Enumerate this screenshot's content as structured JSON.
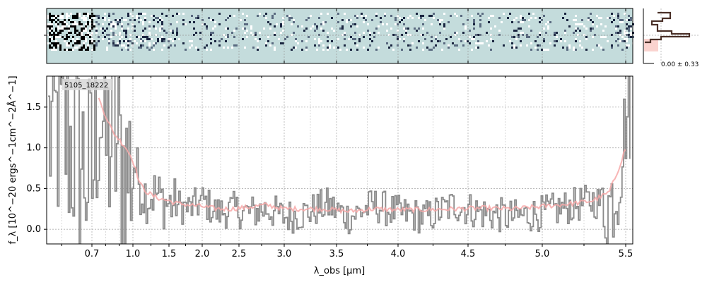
{
  "chart_data": {
    "type": "line",
    "object_id": "5105_18222",
    "ylabel": "f_λ [10^−20 ergs^−1cm^−2Å^−1]",
    "xlabel": "λ_obs [μm]",
    "xticks": [
      0.7,
      1.0,
      1.5,
      2.0,
      2.5,
      3.0,
      3.5,
      4.0,
      4.5,
      5.0,
      5.5
    ],
    "xtick_labels": [
      "0.7",
      "1.0",
      "1.5",
      "2.0",
      "2.5",
      "3.0",
      "3.5",
      "4.0",
      "4.5",
      "5.0",
      "5.5"
    ],
    "yticks": [
      0.0,
      0.5,
      1.0,
      1.5
    ],
    "ytick_labels": [
      "0.0",
      "0.5",
      "1.0",
      "1.5"
    ],
    "xlim": [
      0.55,
      5.55
    ],
    "ylim": [
      -0.18,
      1.88
    ],
    "x_scale": "nonlinear (wavelength axis, sqrt-like)",
    "grid": true,
    "colors": {
      "data": "#8a8a8a",
      "model": "#f7a8a8",
      "spectrum_2d_bg": "#c4dcdc",
      "profile_line": "#4a3028",
      "profile_fill": "#fad3cf"
    },
    "series": [
      {
        "role": "spectrum",
        "x": [
          0.6,
          0.7,
          0.75,
          0.8,
          0.85,
          0.9,
          0.95,
          1.0,
          1.05,
          1.1,
          1.2,
          1.3,
          1.4,
          1.5,
          1.6,
          1.8,
          2.0,
          2.2,
          2.4,
          2.6,
          2.8,
          3.0,
          3.2,
          3.4,
          3.6,
          3.8,
          4.0,
          4.2,
          4.4,
          4.6,
          4.8,
          5.0,
          5.1,
          5.2,
          5.3,
          5.4,
          5.45,
          5.5
        ],
        "y": [
          1.2,
          0.6,
          1.7,
          1.0,
          1.1,
          0.85,
          0.7,
          0.85,
          0.7,
          0.5,
          0.4,
          0.45,
          0.35,
          0.3,
          0.3,
          0.25,
          0.35,
          0.2,
          0.25,
          0.2,
          0.25,
          0.15,
          0.2,
          0.3,
          0.15,
          0.3,
          0.2,
          0.15,
          0.3,
          0.2,
          0.15,
          0.2,
          0.25,
          0.3,
          0.35,
          0.3,
          0.55,
          1.4
        ]
      },
      {
        "role": "model",
        "x": [
          0.75,
          0.8,
          0.85,
          0.9,
          0.95,
          1.0,
          1.05,
          1.1,
          1.2,
          1.3,
          1.4,
          1.5,
          1.6,
          1.8,
          2.0,
          2.2,
          2.4,
          2.6,
          2.8,
          3.0,
          3.2,
          3.4,
          3.6,
          3.8,
          4.0,
          4.2,
          4.4,
          4.6,
          4.8,
          5.0,
          5.1,
          5.2,
          5.3,
          5.4,
          5.45,
          5.5
        ],
        "y": [
          1.6,
          1.4,
          1.2,
          1.1,
          1.0,
          0.85,
          0.7,
          0.55,
          0.45,
          0.4,
          0.37,
          0.35,
          0.32,
          0.3,
          0.28,
          0.25,
          0.25,
          0.27,
          0.3,
          0.25,
          0.25,
          0.25,
          0.22,
          0.25,
          0.24,
          0.24,
          0.25,
          0.26,
          0.25,
          0.28,
          0.3,
          0.32,
          0.35,
          0.45,
          0.7,
          1.0
        ]
      }
    ],
    "profile_label": "0.00 ± 0.33"
  }
}
